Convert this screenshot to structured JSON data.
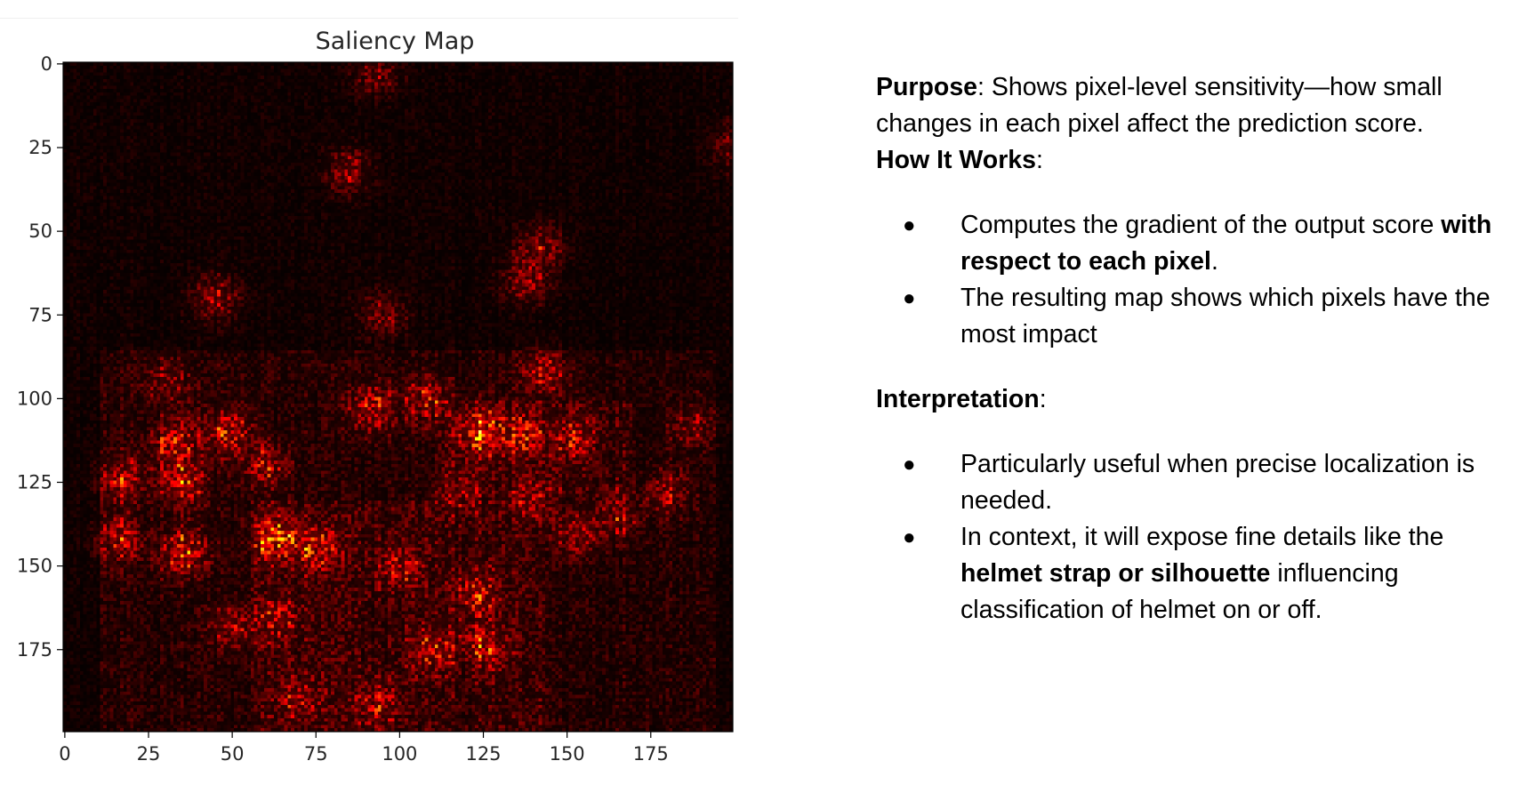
{
  "figure": {
    "title": "Saliency Map",
    "colormap_colors": [
      "#000000",
      "#6a0f00",
      "#d43a10",
      "#ff9a2a",
      "#ffffff"
    ]
  },
  "chart_data": {
    "type": "heatmap",
    "title": "Saliency Map",
    "colormap": "hot",
    "grid": false,
    "xlim": [
      0,
      199
    ],
    "ylim": [
      199,
      0
    ],
    "x_ticks": [
      0,
      25,
      50,
      75,
      100,
      125,
      150,
      175
    ],
    "y_ticks": [
      0,
      25,
      50,
      75,
      100,
      125,
      150,
      175
    ],
    "image_size": [
      200,
      200
    ],
    "hotspots": [
      {
        "x": 124,
        "y": 110,
        "intensity": 0.85
      },
      {
        "x": 63,
        "y": 142,
        "intensity": 0.95
      },
      {
        "x": 35,
        "y": 125,
        "intensity": 0.8
      },
      {
        "x": 35,
        "y": 146,
        "intensity": 0.8
      },
      {
        "x": 33,
        "y": 113,
        "intensity": 0.7
      },
      {
        "x": 49,
        "y": 110,
        "intensity": 0.65
      },
      {
        "x": 17,
        "y": 124,
        "intensity": 0.55
      },
      {
        "x": 16,
        "y": 142,
        "intensity": 0.55
      },
      {
        "x": 137,
        "y": 111,
        "intensity": 0.6
      },
      {
        "x": 152,
        "y": 112,
        "intensity": 0.55
      },
      {
        "x": 92,
        "y": 103,
        "intensity": 0.6
      },
      {
        "x": 108,
        "y": 100,
        "intensity": 0.55
      },
      {
        "x": 143,
        "y": 92,
        "intensity": 0.5
      },
      {
        "x": 138,
        "y": 65,
        "intensity": 0.45
      },
      {
        "x": 142,
        "y": 55,
        "intensity": 0.45
      },
      {
        "x": 45,
        "y": 70,
        "intensity": 0.45
      },
      {
        "x": 85,
        "y": 32,
        "intensity": 0.4
      },
      {
        "x": 95,
        "y": 75,
        "intensity": 0.4
      },
      {
        "x": 75,
        "y": 145,
        "intensity": 0.6
      },
      {
        "x": 100,
        "y": 150,
        "intensity": 0.5
      },
      {
        "x": 123,
        "y": 158,
        "intensity": 0.55
      },
      {
        "x": 110,
        "y": 175,
        "intensity": 0.55
      },
      {
        "x": 125,
        "y": 174,
        "intensity": 0.5
      },
      {
        "x": 93,
        "y": 192,
        "intensity": 0.45
      },
      {
        "x": 70,
        "y": 190,
        "intensity": 0.45
      },
      {
        "x": 165,
        "y": 135,
        "intensity": 0.5
      },
      {
        "x": 180,
        "y": 128,
        "intensity": 0.45
      },
      {
        "x": 153,
        "y": 140,
        "intensity": 0.45
      },
      {
        "x": 60,
        "y": 120,
        "intensity": 0.5
      },
      {
        "x": 64,
        "y": 166,
        "intensity": 0.45
      },
      {
        "x": 50,
        "y": 168,
        "intensity": 0.4
      },
      {
        "x": 118,
        "y": 128,
        "intensity": 0.45
      },
      {
        "x": 30,
        "y": 95,
        "intensity": 0.4
      },
      {
        "x": 187,
        "y": 108,
        "intensity": 0.35
      },
      {
        "x": 200,
        "y": 25,
        "intensity": 0.35
      },
      {
        "x": 93,
        "y": 3,
        "intensity": 0.35
      },
      {
        "x": 140,
        "y": 130,
        "intensity": 0.45
      }
    ]
  },
  "notes": {
    "purpose_label": "Purpose",
    "purpose_text": ": Shows pixel-level sensitivity—how small changes in each pixel affect the prediction score.",
    "how_label": "How It Works",
    "how_colon": ":",
    "bullet_symbol": "●",
    "how_items": [
      {
        "pre": "Computes the gradient of the output score ",
        "bold": "with respect to each pixel",
        "post": "."
      },
      {
        "pre": "The resulting map shows which pixels have the most impact",
        "bold": "",
        "post": ""
      }
    ],
    "interp_label": "Interpretation",
    "interp_colon": ":",
    "interp_items": [
      {
        "pre": "Particularly useful when precise localization is needed.",
        "bold": "",
        "post": ""
      },
      {
        "pre": "In context, it will expose fine details like the ",
        "bold": "helmet strap or silhouette",
        "post": " influencing classification of helmet on or off."
      }
    ]
  }
}
